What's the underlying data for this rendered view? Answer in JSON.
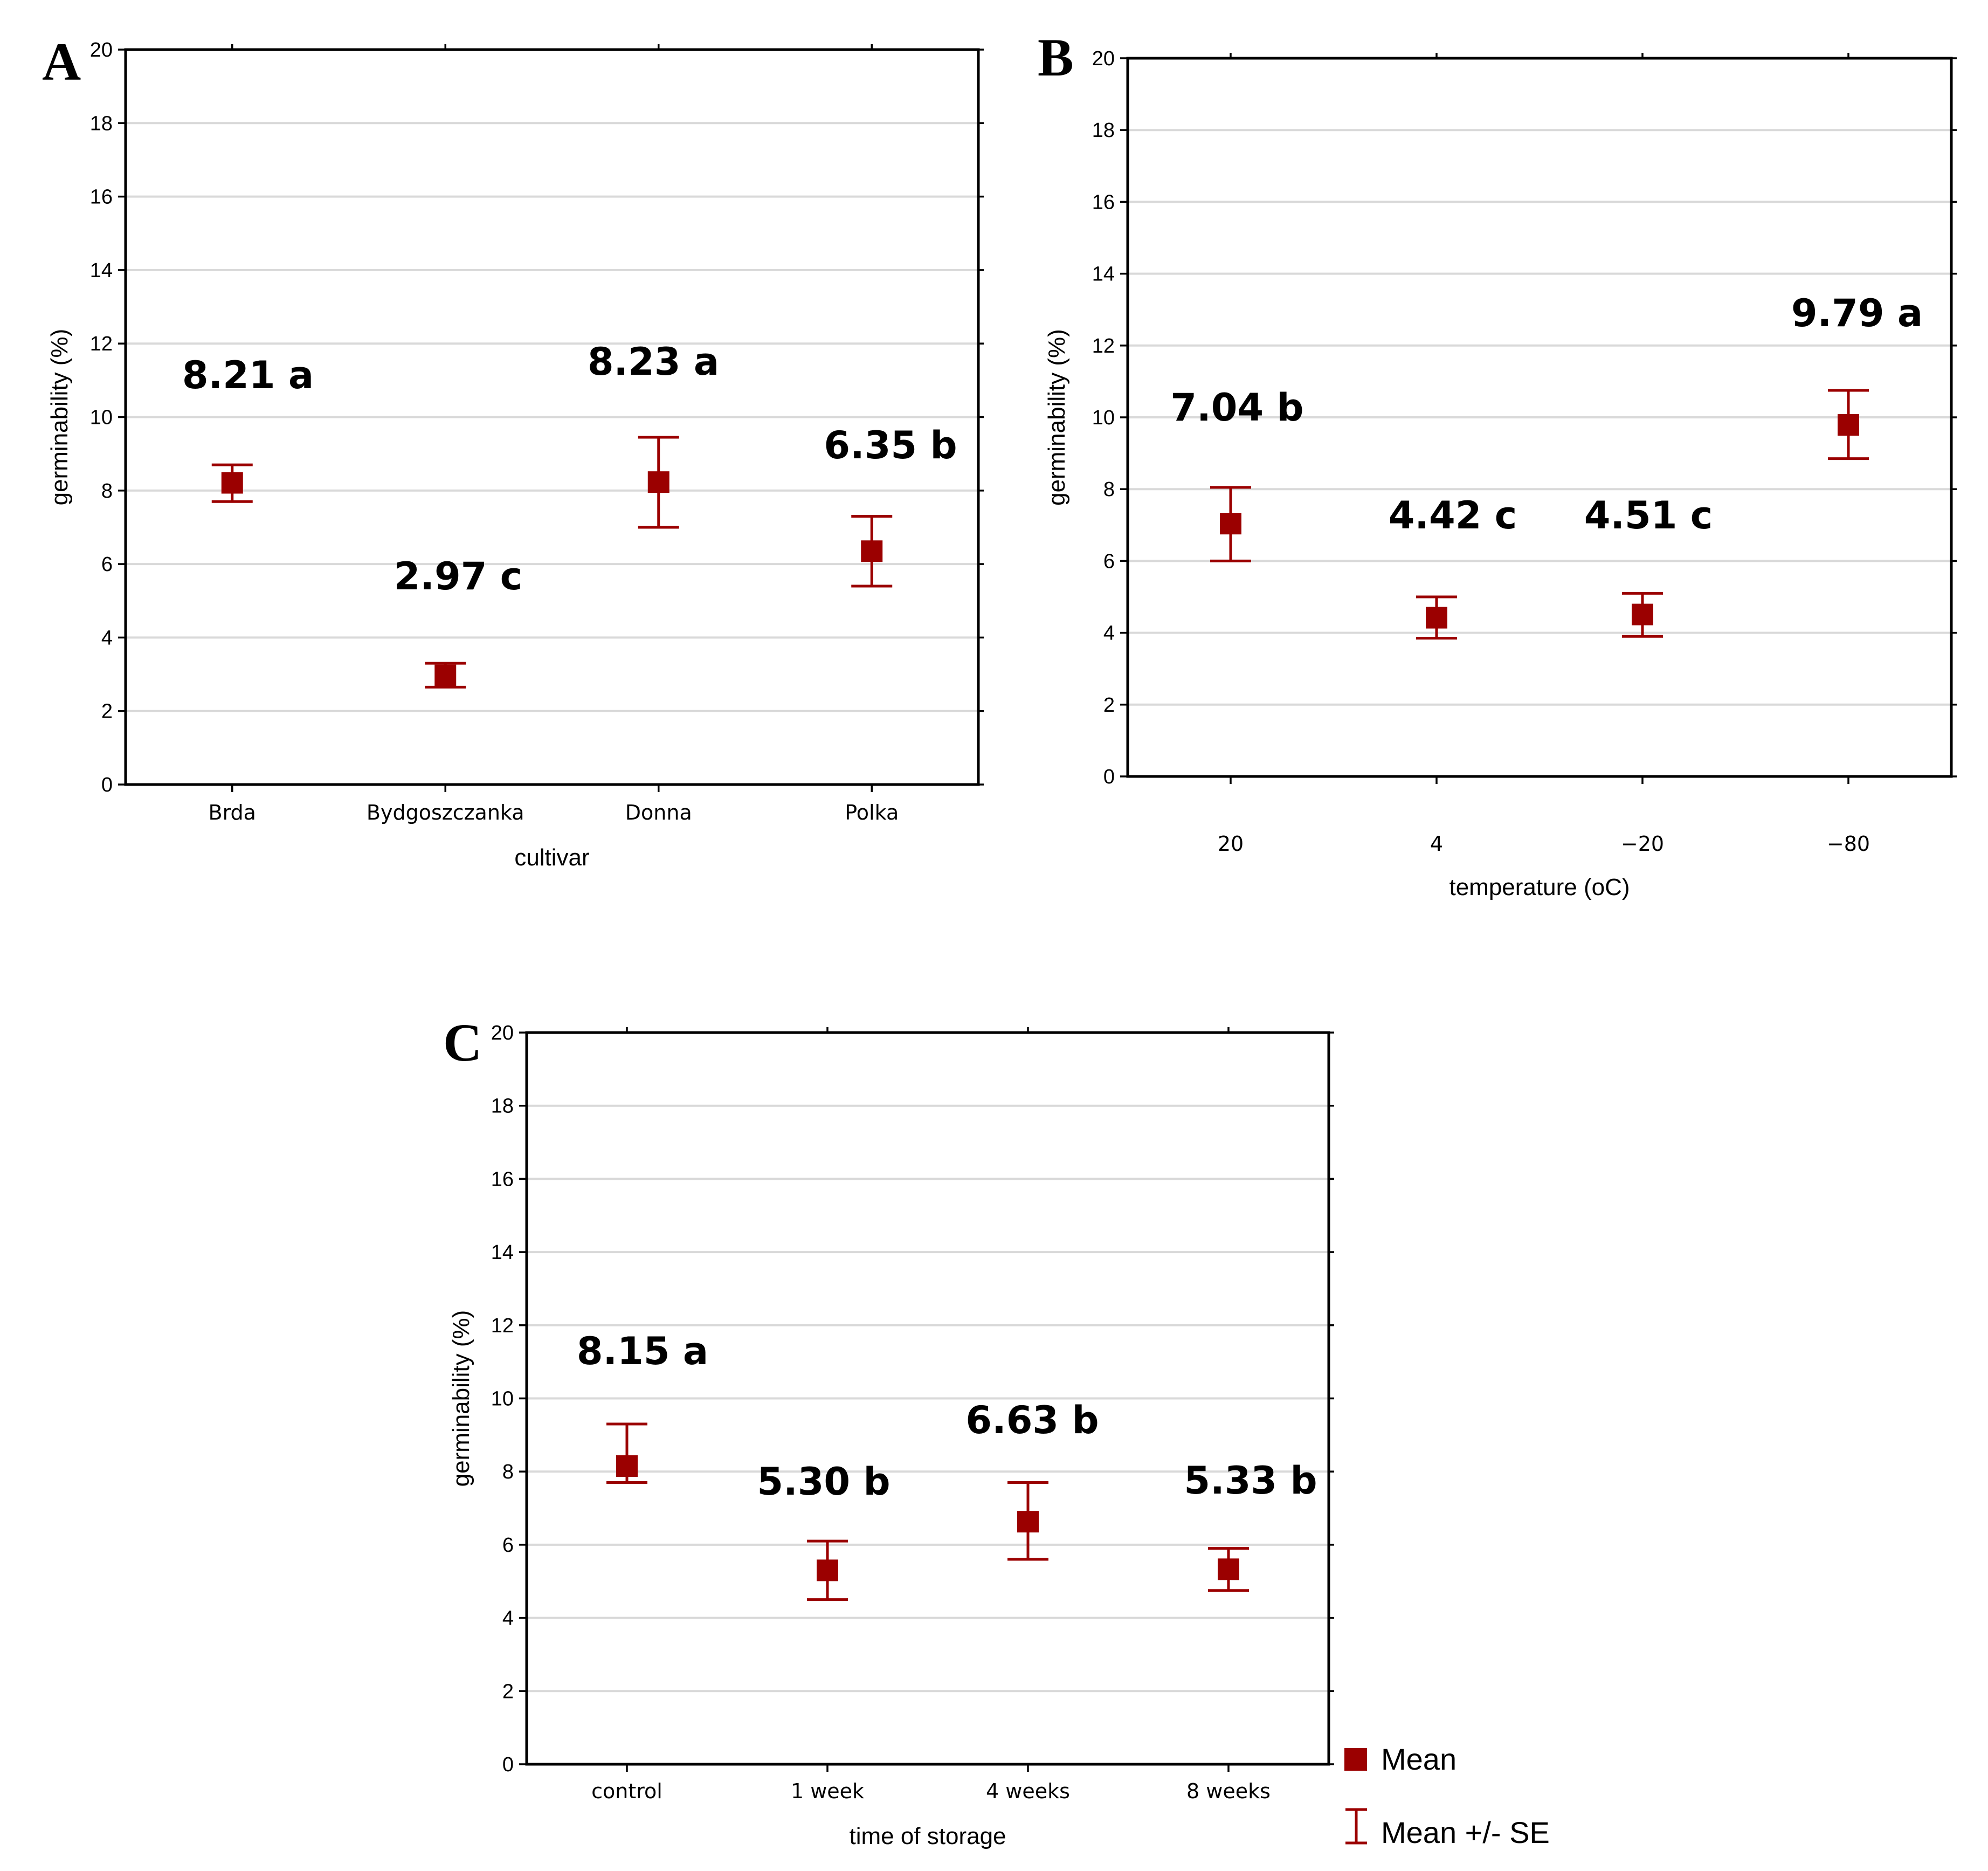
{
  "chart_data": [
    {
      "type": "scatter",
      "panel": "A",
      "title": "",
      "xlabel": "cultivar",
      "ylabel": "germinability (%)",
      "ylim": [
        0,
        20
      ],
      "yticks": [
        0,
        2,
        4,
        6,
        8,
        10,
        12,
        14,
        16,
        18,
        20
      ],
      "grid": true,
      "categories": [
        "Brda",
        "Bydgoszczanka",
        "Donna",
        "Polka"
      ],
      "series": [
        {
          "name": "Mean",
          "values": [
            8.21,
            2.97,
            8.23,
            6.35
          ]
        },
        {
          "name": "Mean +/- SE lower",
          "values": [
            7.7,
            2.65,
            7.0,
            5.4
          ]
        },
        {
          "name": "Mean +/- SE upper",
          "values": [
            8.7,
            3.3,
            9.45,
            7.3
          ]
        }
      ],
      "annotations": [
        "8.21 a",
        "2.97 c",
        "8.23 a",
        "6.35 b"
      ]
    },
    {
      "type": "scatter",
      "panel": "B",
      "title": "",
      "xlabel": "temperature (oC)",
      "ylabel": "germinability (%)",
      "ylim": [
        0,
        20
      ],
      "yticks": [
        0,
        2,
        4,
        6,
        8,
        10,
        12,
        14,
        16,
        18,
        20
      ],
      "grid": true,
      "categories": [
        "20",
        "4",
        "−20",
        "−80"
      ],
      "series": [
        {
          "name": "Mean",
          "values": [
            7.04,
            4.42,
            4.51,
            9.79
          ]
        },
        {
          "name": "Mean +/- SE lower",
          "values": [
            6.0,
            3.85,
            3.9,
            8.85
          ]
        },
        {
          "name": "Mean +/- SE upper",
          "values": [
            8.05,
            5.0,
            5.1,
            10.75
          ]
        }
      ],
      "annotations": [
        "7.04 b",
        "4.42 c",
        "4.51 c",
        "9.79 a"
      ]
    },
    {
      "type": "scatter",
      "panel": "C",
      "title": "",
      "xlabel": "time of storage",
      "ylabel": "germinability (%)",
      "ylim": [
        0,
        20
      ],
      "yticks": [
        0,
        2,
        4,
        6,
        8,
        10,
        12,
        14,
        16,
        18,
        20
      ],
      "grid": true,
      "categories": [
        "control",
        "1 week",
        "4 weeks",
        "8 weeks"
      ],
      "series": [
        {
          "name": "Mean",
          "values": [
            8.15,
            5.3,
            6.63,
            5.33
          ]
        },
        {
          "name": "Mean +/- SE lower",
          "values": [
            7.7,
            4.5,
            5.6,
            4.75
          ]
        },
        {
          "name": "Mean +/- SE upper",
          "values": [
            9.3,
            6.1,
            7.7,
            5.9
          ]
        }
      ],
      "annotations": [
        "8.15 a",
        "5.30 b",
        "6.63 b",
        "5.33 b"
      ]
    }
  ],
  "legend": {
    "mean_label": "Mean",
    "se_label": "Mean +/- SE",
    "placement": "bottom-right"
  },
  "colors": {
    "marker": "#9b0000",
    "grid": "#d9d9d9"
  }
}
